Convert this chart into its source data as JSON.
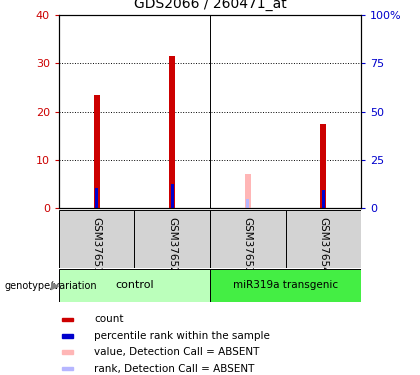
{
  "title": "GDS2066 / 260471_at",
  "samples": [
    "GSM37651",
    "GSM37652",
    "GSM37653",
    "GSM37654"
  ],
  "count_values": [
    23.5,
    31.5,
    null,
    17.5
  ],
  "rank_values": [
    10.5,
    12.5,
    null,
    9.5
  ],
  "absent_count_values": [
    null,
    null,
    7.0,
    null
  ],
  "absent_rank_values": [
    null,
    null,
    4.5,
    null
  ],
  "ylim_left": [
    0,
    40
  ],
  "ylim_right": [
    0,
    100
  ],
  "yticks_left": [
    0,
    10,
    20,
    30,
    40
  ],
  "yticks_right": [
    0,
    25,
    50,
    75,
    100
  ],
  "count_color": "#cc0000",
  "rank_color": "#0000cc",
  "absent_count_color": "#ffb6b6",
  "absent_rank_color": "#b6b6ff",
  "left_tick_color": "#cc0000",
  "right_tick_color": "#0000cc",
  "group_ctrl_color": "#bbffbb",
  "group_mir_color": "#44ee44",
  "sample_bg_color": "#d3d3d3",
  "legend_items": [
    [
      "#cc0000",
      "count"
    ],
    [
      "#0000cc",
      "percentile rank within the sample"
    ],
    [
      "#ffb6b6",
      "value, Detection Call = ABSENT"
    ],
    [
      "#b6b6ff",
      "rank, Detection Call = ABSENT"
    ]
  ]
}
